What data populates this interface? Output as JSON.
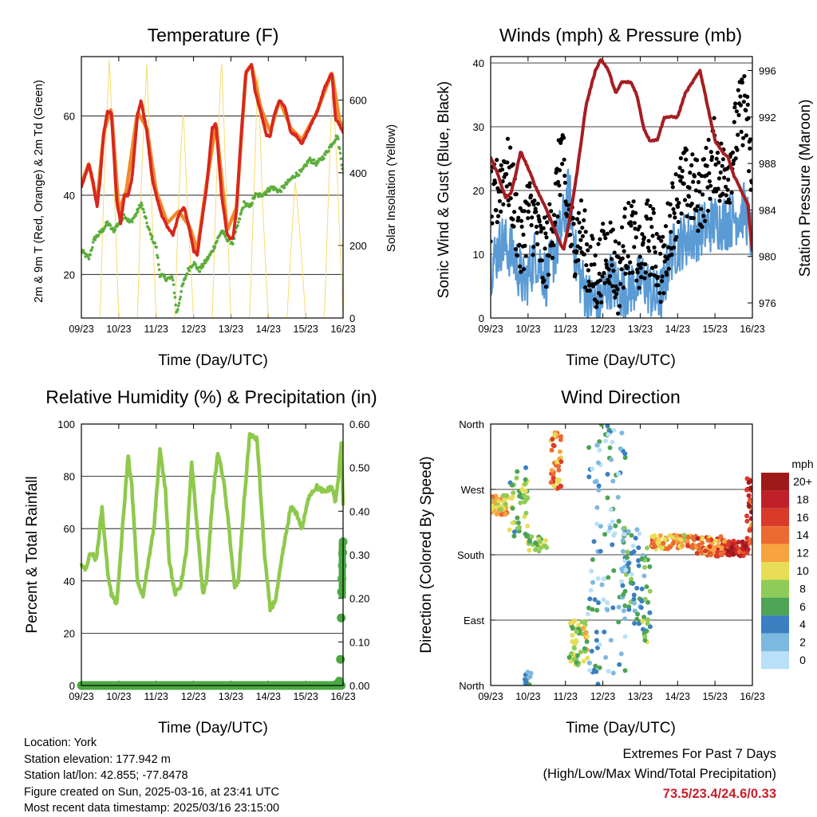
{
  "panels": {
    "temperature": {
      "title": "Temperature (F)",
      "ylabel_left": "2m & 9m T (Red, Orange) & 2m Td (Green)",
      "ylabel_right": "Solar Insolation (Yellow)",
      "xlabel": "Time (Day/UTC)"
    },
    "winds": {
      "title": "Winds (mph) & Pressure (mb)",
      "ylabel_left": "Sonic Wind & Gust (Blue, Black)",
      "ylabel_right": "Station Pressure (Maroon)",
      "xlabel": "Time (Day/UTC)"
    },
    "humidity": {
      "title": "Relative Humidity (%) & Precipitation (in)",
      "ylabel_left": "Percent & Total Rainfall",
      "xlabel": "Time (Day/UTC)"
    },
    "direction": {
      "title": "Wind Direction",
      "ylabel_left": "Direction (Colored By Speed)",
      "xlabel": "Time (Day/UTC)",
      "legend_title": "mph"
    }
  },
  "footer": {
    "location": "Location: York",
    "elevation": "Station elevation: 177.942 m",
    "latlon": "Station lat/lon: 42.855; -77.8478",
    "created": "Figure created on Sun, 2025-03-16, at 23:41 UTC",
    "recent": "Most recent data timestamp: 2025/03/16 23:15:00"
  },
  "extremes": {
    "line1": "Extremes For Past 7 Days",
    "line2": "(High/Low/Max Wind/Total Precipitation)",
    "values": "73.5/23.4/24.6/0.33"
  },
  "chart_data": [
    {
      "id": "temperature",
      "type": "line",
      "title": "Temperature (F)",
      "xlabel": "Time (Day/UTC)",
      "x_ticks": [
        "09/23",
        "10/23",
        "11/23",
        "12/23",
        "13/23",
        "14/23",
        "15/23",
        "16/23"
      ],
      "xlim": [
        0,
        7
      ],
      "ylim": [
        9,
        75
      ],
      "y_ticks": [
        20,
        40,
        60
      ],
      "y2lim": [
        0,
        720
      ],
      "y2_ticks": [
        0,
        200,
        400,
        600
      ],
      "series": [
        {
          "name": "2m T",
          "color": "#d6281e",
          "axis": "left",
          "x": [
            0,
            0.1,
            0.2,
            0.3,
            0.42,
            0.5,
            0.6,
            0.7,
            0.8,
            0.95,
            1.05,
            1.15,
            1.25,
            1.35,
            1.5,
            1.6,
            1.75,
            1.9,
            2.0,
            2.15,
            2.3,
            2.45,
            2.6,
            2.75,
            2.9,
            3.0,
            3.1,
            3.2,
            3.35,
            3.5,
            3.6,
            3.75,
            3.9,
            4.0,
            4.05,
            4.15,
            4.25,
            4.4,
            4.55,
            4.65,
            4.8,
            4.95,
            5.05,
            5.15,
            5.3,
            5.45,
            5.6,
            5.75,
            5.9,
            6.1,
            6.3,
            6.5,
            6.7,
            6.8,
            6.9,
            7.0
          ],
          "y": [
            42,
            45,
            48,
            44,
            37,
            44,
            56,
            61,
            61,
            38,
            33,
            40,
            40,
            44,
            60,
            64,
            56,
            44,
            40,
            35,
            32,
            30,
            35,
            37,
            31,
            26,
            25,
            32,
            42,
            57,
            58,
            40,
            30,
            29,
            29,
            36,
            52,
            71,
            73,
            66,
            61,
            55,
            55,
            60,
            64,
            62,
            56,
            55,
            53,
            57,
            61,
            67,
            71,
            59,
            58,
            56
          ]
        },
        {
          "name": "9m T",
          "color": "#f08a2a",
          "axis": "left",
          "x": [
            0,
            0.2,
            0.42,
            0.6,
            0.8,
            1.0,
            1.2,
            1.5,
            1.75,
            2.0,
            2.3,
            2.6,
            2.9,
            3.1,
            3.35,
            3.6,
            3.9,
            4.15,
            4.4,
            4.55,
            4.8,
            5.05,
            5.3,
            5.6,
            5.9,
            6.3,
            6.7,
            6.9,
            7.0
          ],
          "y": [
            43,
            48,
            38,
            56,
            62,
            36,
            41,
            61,
            57,
            41,
            33,
            36,
            32,
            26,
            43,
            58,
            31,
            37,
            71,
            73,
            62,
            56,
            64,
            57,
            54,
            61,
            71,
            59,
            57
          ]
        },
        {
          "name": "2m Td",
          "color": "#5cad3c",
          "axis": "left",
          "x": [
            0,
            0.2,
            0.35,
            0.55,
            0.7,
            0.85,
            1.0,
            1.15,
            1.3,
            1.45,
            1.6,
            1.75,
            1.85,
            2.0,
            2.1,
            2.25,
            2.45,
            2.55,
            2.7,
            2.85,
            3.0,
            3.15,
            3.3,
            3.45,
            3.6,
            3.75,
            3.9,
            4.05,
            4.2,
            4.35,
            4.5,
            4.65,
            4.8,
            4.95,
            5.1,
            5.3,
            5.5,
            5.7,
            5.9,
            6.1,
            6.3,
            6.5,
            6.7,
            6.85,
            7.0
          ],
          "y": [
            26,
            24,
            29,
            31,
            33,
            31,
            33,
            35,
            33,
            35,
            38,
            33,
            30,
            27,
            20,
            19,
            19,
            10,
            17,
            21,
            23,
            21,
            23,
            25,
            28,
            31,
            29,
            28,
            33,
            38,
            37,
            40,
            40,
            41,
            42,
            41,
            43,
            45,
            46,
            49,
            48,
            50,
            53,
            55,
            46
          ]
        },
        {
          "name": "Solar Insolation",
          "color": "#f7dc6f",
          "axis": "right",
          "x": [
            0,
            0.5,
            0.6,
            0.75,
            0.9,
            1.0,
            1.5,
            1.62,
            1.75,
            1.9,
            2.0,
            2.5,
            2.6,
            2.72,
            2.85,
            3.0,
            3.5,
            3.62,
            3.75,
            3.9,
            4.0,
            4.5,
            4.6,
            4.72,
            4.85,
            5.0,
            5.5,
            5.6,
            5.72,
            5.85,
            6.0,
            6.5,
            6.6,
            6.72,
            6.85,
            7.0
          ],
          "y": [
            0,
            0,
            350,
            720,
            300,
            0,
            0,
            420,
            700,
            260,
            0,
            0,
            320,
            580,
            280,
            0,
            0,
            400,
            720,
            280,
            0,
            0,
            300,
            690,
            310,
            0,
            0,
            180,
            380,
            230,
            0,
            0,
            310,
            660,
            380,
            0
          ]
        }
      ]
    },
    {
      "id": "winds",
      "type": "line",
      "title": "Winds (mph) & Pressure (mb)",
      "xlabel": "Time (Day/UTC)",
      "x_ticks": [
        "09/23",
        "10/23",
        "11/23",
        "12/23",
        "13/23",
        "14/23",
        "15/23",
        "16/23"
      ],
      "xlim": [
        0,
        7
      ],
      "ylim": [
        0,
        41
      ],
      "y_ticks": [
        0,
        10,
        20,
        30,
        40
      ],
      "y2lim": [
        974.7,
        997.2
      ],
      "y2_ticks": [
        976,
        980,
        984,
        988,
        992,
        996
      ],
      "series": [
        {
          "name": "Wind",
          "color": "#5a9bd5",
          "axis": "left",
          "x": [
            0,
            0.3,
            0.6,
            0.9,
            1.2,
            1.5,
            1.7,
            1.9,
            2.1,
            2.3,
            2.6,
            2.9,
            3.2,
            3.5,
            3.8,
            4.1,
            4.4,
            4.6,
            4.8,
            5.1,
            5.4,
            5.7,
            6.0,
            6.3,
            6.6,
            6.8,
            7.0
          ],
          "y": [
            8,
            12,
            10,
            5,
            10,
            6,
            10,
            14,
            20,
            8,
            3,
            2,
            6,
            4,
            5,
            6,
            3,
            4,
            10,
            12,
            13,
            14,
            15,
            15,
            16,
            17,
            12
          ]
        },
        {
          "name": "Gust",
          "color": "#000000",
          "axis": "left",
          "x": [
            0,
            0.2,
            0.4,
            0.6,
            0.8,
            1.0,
            1.2,
            1.4,
            1.6,
            1.8,
            1.9,
            2.0,
            2.2,
            2.4,
            2.6,
            2.8,
            3.0,
            3.2,
            3.4,
            3.6,
            3.8,
            4.0,
            4.2,
            4.4,
            4.6,
            4.8,
            5.0,
            5.2,
            5.4,
            5.6,
            5.8,
            6.0,
            6.2,
            6.4,
            6.6,
            6.8,
            7.0
          ],
          "y": [
            17,
            20,
            24,
            19,
            11,
            17,
            15,
            9,
            13,
            21,
            27,
            18,
            12,
            14,
            9,
            6,
            9,
            11,
            6,
            12,
            13,
            8,
            13,
            11,
            7,
            15,
            19,
            21,
            20,
            19,
            22,
            26,
            22,
            24,
            30,
            34,
            20
          ]
        },
        {
          "name": "Station Pressure",
          "color": "#a51e22",
          "axis": "right",
          "x": [
            0,
            0.2,
            0.4,
            0.55,
            0.7,
            0.8,
            0.95,
            1.2,
            1.5,
            1.75,
            1.95,
            2.1,
            2.3,
            2.55,
            2.8,
            2.95,
            3.15,
            3.35,
            3.5,
            3.75,
            3.9,
            4.1,
            4.25,
            4.45,
            4.65,
            4.8,
            5.0,
            5.2,
            5.4,
            5.6,
            5.8,
            6.0,
            6.2,
            6.35,
            6.5,
            6.65,
            6.8,
            6.88,
            6.95,
            7.0
          ],
          "y": [
            988.5,
            987,
            985,
            985.5,
            987.5,
            989,
            988,
            986,
            984,
            982,
            980.5,
            983,
            987,
            993,
            996,
            997,
            996,
            994,
            995,
            995,
            994,
            991,
            990,
            990,
            992,
            992,
            992,
            994,
            995,
            996,
            993,
            990,
            989,
            988.5,
            987,
            986,
            985,
            984.5,
            982,
            980.5
          ]
        }
      ]
    },
    {
      "id": "humidity",
      "type": "line",
      "title": "Relative Humidity (%) & Precipitation (in)",
      "xlabel": "Time (Day/UTC)",
      "x_ticks": [
        "09/23",
        "10/23",
        "11/23",
        "12/23",
        "13/23",
        "14/23",
        "15/23",
        "16/23"
      ],
      "xlim": [
        0,
        7
      ],
      "ylim": [
        0,
        100
      ],
      "y_ticks": [
        0,
        20,
        40,
        60,
        80,
        100
      ],
      "y2lim": [
        0,
        0.6
      ],
      "y2_ticks": [
        "0.00",
        "0.10",
        "0.20",
        "0.30",
        "0.40",
        "0.50",
        "0.60"
      ],
      "series": [
        {
          "name": "RH",
          "color": "#8ec94c",
          "axis": "left",
          "x": [
            0,
            0.1,
            0.25,
            0.4,
            0.55,
            0.7,
            0.8,
            0.95,
            1.1,
            1.25,
            1.35,
            1.5,
            1.65,
            1.8,
            1.95,
            2.1,
            2.25,
            2.35,
            2.5,
            2.65,
            2.8,
            2.95,
            3.1,
            3.25,
            3.35,
            3.5,
            3.65,
            3.8,
            3.95,
            4.1,
            4.2,
            4.35,
            4.5,
            4.7,
            4.9,
            5.05,
            5.2,
            5.4,
            5.6,
            5.75,
            5.9,
            6.1,
            6.3,
            6.5,
            6.7,
            6.8,
            6.88,
            6.95,
            7.0
          ],
          "y": [
            47,
            44,
            51,
            48,
            68,
            44,
            35,
            31,
            60,
            88,
            76,
            40,
            34,
            48,
            62,
            90,
            75,
            48,
            35,
            38,
            50,
            85,
            60,
            35,
            40,
            70,
            89,
            79,
            60,
            37,
            40,
            70,
            96,
            94,
            50,
            29,
            33,
            52,
            68,
            66,
            60,
            73,
            76,
            74,
            76,
            70,
            80,
            93,
            70
          ]
        }
      ],
      "precip": {
        "name": "Total Rainfall",
        "color": "#4aa842",
        "x": [
          0,
          1,
          2,
          3,
          4,
          5,
          6,
          6.5,
          6.8,
          6.9,
          6.93,
          6.95,
          6.96,
          6.97,
          6.98,
          6.99,
          7.0
        ],
        "y": [
          0,
          0,
          0,
          0,
          0,
          0,
          0,
          0,
          0.002,
          0.01,
          0.06,
          0.155,
          0.215,
          0.245,
          0.275,
          0.305,
          0.33
        ]
      }
    },
    {
      "id": "direction",
      "type": "scatter",
      "title": "Wind Direction",
      "xlabel": "Time (Day/UTC)",
      "x_ticks": [
        "09/23",
        "10/23",
        "11/23",
        "12/23",
        "13/23",
        "14/23",
        "15/23",
        "16/23"
      ],
      "xlim": [
        0,
        7
      ],
      "y_ticks": [
        "North",
        "East",
        "South",
        "West",
        "North"
      ],
      "ylim": [
        0,
        360
      ],
      "legend": {
        "title": "mph",
        "labels": [
          "20+",
          "18",
          "16",
          "14",
          "12",
          "10",
          "8",
          "6",
          "4",
          "2",
          "0"
        ],
        "colors": [
          "#9e1a1a",
          "#c0202a",
          "#d93a2a",
          "#ec6a30",
          "#f7a340",
          "#e8de56",
          "#8fcb58",
          "#4ca454",
          "#3a80c0",
          "#7db8e0",
          "#b8e0f8"
        ]
      },
      "clusters": [
        {
          "x": [
            0.0,
            0.45
          ],
          "dir": [
            235,
            262
          ],
          "speed": 11,
          "count": 55
        },
        {
          "x": [
            0.5,
            1.0
          ],
          "dir": [
            205,
            300
          ],
          "speed": 7,
          "count": 45
        },
        {
          "x": [
            1.0,
            1.5
          ],
          "dir": [
            185,
            205
          ],
          "speed": 8,
          "count": 25
        },
        {
          "x": [
            0.9,
            1.1
          ],
          "dir": [
            0,
            20
          ],
          "speed": 3,
          "count": 12
        },
        {
          "x": [
            1.6,
            1.9
          ],
          "dir": [
            270,
            350
          ],
          "speed": 13,
          "count": 40
        },
        {
          "x": [
            2.1,
            2.6
          ],
          "dir": [
            25,
            90
          ],
          "speed": 9,
          "count": 55
        },
        {
          "x": [
            2.6,
            3.6
          ],
          "dir": [
            0,
            360
          ],
          "speed": 3,
          "count": 110
        },
        {
          "x": [
            3.5,
            4.0
          ],
          "dir": [
            80,
            220
          ],
          "speed": 4,
          "count": 60
        },
        {
          "x": [
            4.0,
            4.3
          ],
          "dir": [
            60,
            200
          ],
          "speed": 6,
          "count": 30
        },
        {
          "x": [
            4.3,
            5.5
          ],
          "dir": [
            188,
            207
          ],
          "speed": 12,
          "count": 95
        },
        {
          "x": [
            5.5,
            6.3
          ],
          "dir": [
            178,
            205
          ],
          "speed": 14,
          "count": 70
        },
        {
          "x": [
            6.3,
            6.9
          ],
          "dir": [
            178,
            200
          ],
          "speed": 18,
          "count": 55
        },
        {
          "x": [
            6.85,
            7.0
          ],
          "dir": [
            190,
            285
          ],
          "speed": 16,
          "count": 25
        }
      ]
    }
  ]
}
